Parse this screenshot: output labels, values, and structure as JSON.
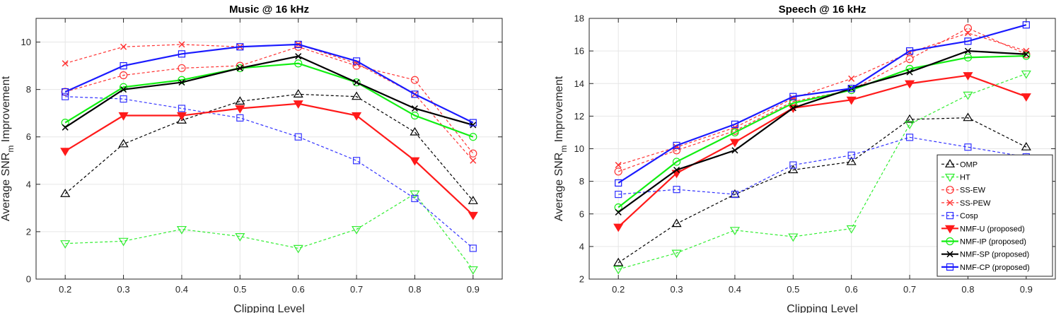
{
  "chart_data": [
    {
      "type": "line",
      "title": "Music @ 16 kHz",
      "xlabel": "Clipping Level",
      "ylabel_main": "Average SNR",
      "ylabel_sub": "m",
      "ylabel_tail": " Improvement",
      "x": [
        0.2,
        0.3,
        0.4,
        0.5,
        0.6,
        0.7,
        0.8,
        0.9
      ],
      "xlim": [
        0.15,
        0.95
      ],
      "ylim": [
        0,
        11
      ],
      "xticks": [
        "0.2",
        "0.3",
        "0.4",
        "0.5",
        "0.6",
        "0.7",
        "0.8",
        "0.9"
      ],
      "yticks": [
        "0",
        "2",
        "4",
        "6",
        "8",
        "10"
      ],
      "grid": true,
      "legend": false,
      "series": [
        {
          "name": "OMP",
          "color": "#000000",
          "marker": "triangle-up",
          "dashed": true,
          "values": [
            3.6,
            5.7,
            6.7,
            7.5,
            7.8,
            7.7,
            6.2,
            3.3
          ]
        },
        {
          "name": "HT",
          "color": "#33ee33",
          "marker": "triangle-down",
          "dashed": true,
          "values": [
            1.5,
            1.6,
            2.1,
            1.8,
            1.3,
            2.1,
            3.6,
            0.4
          ]
        },
        {
          "name": "SS-EW",
          "color": "#ff3333",
          "marker": "circle",
          "dashed": true,
          "values": [
            7.9,
            8.6,
            8.9,
            9.0,
            9.8,
            9.0,
            8.4,
            5.3
          ]
        },
        {
          "name": "SS-PEW",
          "color": "#ff3333",
          "marker": "x",
          "dashed": true,
          "values": [
            9.1,
            9.8,
            9.9,
            9.8,
            9.9,
            9.1,
            7.8,
            5.0
          ]
        },
        {
          "name": "Cosp",
          "color": "#3333ff",
          "marker": "square",
          "dashed": true,
          "values": [
            7.7,
            7.6,
            7.2,
            6.8,
            6.0,
            5.0,
            3.4,
            1.3
          ]
        },
        {
          "name": "NMF-U (proposed)",
          "color": "#ff1a1a",
          "marker": "triangle-down-filled",
          "dashed": false,
          "values": [
            5.4,
            6.9,
            6.9,
            7.2,
            7.4,
            6.9,
            5.0,
            2.7
          ]
        },
        {
          "name": "NMF-IP (proposed)",
          "color": "#11ee11",
          "marker": "circle",
          "dashed": false,
          "values": [
            6.6,
            8.1,
            8.4,
            8.9,
            9.1,
            8.3,
            6.9,
            6.0
          ]
        },
        {
          "name": "NMF-SP (proposed)",
          "color": "#000000",
          "marker": "x",
          "dashed": false,
          "values": [
            6.4,
            8.0,
            8.3,
            8.9,
            9.4,
            8.3,
            7.2,
            6.5
          ]
        },
        {
          "name": "NMF-CP (proposed)",
          "color": "#1a1aff",
          "marker": "square",
          "dashed": false,
          "values": [
            7.9,
            9.0,
            9.5,
            9.8,
            9.9,
            9.2,
            7.8,
            6.6
          ]
        }
      ]
    },
    {
      "type": "line",
      "title": "Speech @ 16 kHz",
      "xlabel": "Clipping Level",
      "ylabel_main": "Average SNR",
      "ylabel_sub": "m",
      "ylabel_tail": " Improvement",
      "x": [
        0.2,
        0.3,
        0.4,
        0.5,
        0.6,
        0.7,
        0.8,
        0.9
      ],
      "xlim": [
        0.15,
        0.95
      ],
      "ylim": [
        2,
        18
      ],
      "xticks": [
        "0.2",
        "0.3",
        "0.4",
        "0.5",
        "0.6",
        "0.7",
        "0.8",
        "0.9"
      ],
      "yticks": [
        "2",
        "4",
        "6",
        "8",
        "10",
        "12",
        "14",
        "16",
        "18"
      ],
      "grid": true,
      "legend": true,
      "legend_position": "bottom-right",
      "series": [
        {
          "name": "OMP",
          "color": "#000000",
          "marker": "triangle-up",
          "dashed": true,
          "values": [
            3.0,
            5.4,
            7.2,
            8.7,
            9.2,
            11.8,
            11.9,
            10.1
          ]
        },
        {
          "name": "HT",
          "color": "#33ee33",
          "marker": "triangle-down",
          "dashed": true,
          "values": [
            2.6,
            3.6,
            5.0,
            4.6,
            5.1,
            11.5,
            13.3,
            14.6
          ]
        },
        {
          "name": "SS-EW",
          "color": "#ff3333",
          "marker": "circle",
          "dashed": true,
          "values": [
            8.6,
            9.9,
            11.1,
            12.9,
            13.6,
            15.5,
            17.4,
            15.8
          ]
        },
        {
          "name": "SS-PEW",
          "color": "#ff3333",
          "marker": "x",
          "dashed": true,
          "values": [
            9.0,
            10.1,
            11.3,
            13.1,
            14.3,
            15.9,
            17.1,
            16.0
          ]
        },
        {
          "name": "Cosp",
          "color": "#3333ff",
          "marker": "square",
          "dashed": true,
          "values": [
            7.2,
            7.5,
            7.2,
            9.0,
            9.6,
            10.7,
            10.1,
            9.5
          ]
        },
        {
          "name": "NMF-U (proposed)",
          "color": "#ff1a1a",
          "marker": "triangle-down-filled",
          "dashed": false,
          "values": [
            5.2,
            8.5,
            10.4,
            12.5,
            13.0,
            14.0,
            14.5,
            13.2
          ]
        },
        {
          "name": "NMF-IP (proposed)",
          "color": "#11ee11",
          "marker": "circle",
          "dashed": false,
          "values": [
            6.4,
            9.2,
            11.0,
            12.8,
            13.6,
            14.9,
            15.6,
            15.7
          ]
        },
        {
          "name": "NMF-SP (proposed)",
          "color": "#000000",
          "marker": "x",
          "dashed": false,
          "values": [
            6.1,
            8.7,
            9.9,
            12.5,
            13.7,
            14.7,
            16.0,
            15.8
          ]
        },
        {
          "name": "NMF-CP (proposed)",
          "color": "#1a1aff",
          "marker": "square",
          "dashed": false,
          "values": [
            7.9,
            10.2,
            11.5,
            13.2,
            13.7,
            16.0,
            16.6,
            17.6
          ]
        }
      ]
    }
  ]
}
